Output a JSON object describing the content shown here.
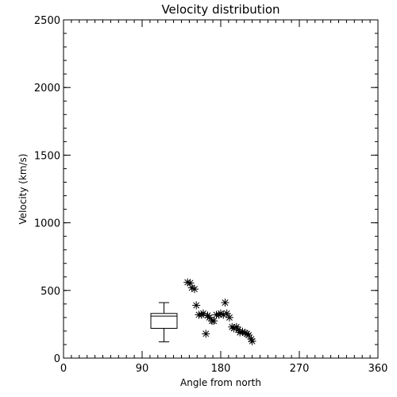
{
  "chart_data": {
    "type": "scatter",
    "title": "Velocity distribution",
    "xlabel": "Angle from north",
    "ylabel": "Velocity (km/s)",
    "xlim": [
      0,
      360
    ],
    "ylim": [
      0,
      2500
    ],
    "xticks": [
      "0",
      "90",
      "180",
      "270",
      "360"
    ],
    "yticks": [
      "0",
      "500",
      "1000",
      "1500",
      "2000",
      "2500"
    ],
    "marker": "asterisk",
    "grid": false,
    "points": [
      {
        "x": 142,
        "y": 560
      },
      {
        "x": 145,
        "y": 555
      },
      {
        "x": 147,
        "y": 520
      },
      {
        "x": 150,
        "y": 510
      },
      {
        "x": 152,
        "y": 390
      },
      {
        "x": 155,
        "y": 320
      },
      {
        "x": 158,
        "y": 320
      },
      {
        "x": 160,
        "y": 330
      },
      {
        "x": 163,
        "y": 180
      },
      {
        "x": 165,
        "y": 315
      },
      {
        "x": 167,
        "y": 300
      },
      {
        "x": 170,
        "y": 275
      },
      {
        "x": 172,
        "y": 275
      },
      {
        "x": 175,
        "y": 320
      },
      {
        "x": 178,
        "y": 320
      },
      {
        "x": 180,
        "y": 330
      },
      {
        "x": 183,
        "y": 320
      },
      {
        "x": 185,
        "y": 410
      },
      {
        "x": 187,
        "y": 330
      },
      {
        "x": 190,
        "y": 300
      },
      {
        "x": 193,
        "y": 230
      },
      {
        "x": 195,
        "y": 220
      },
      {
        "x": 198,
        "y": 230
      },
      {
        "x": 200,
        "y": 210
      },
      {
        "x": 202,
        "y": 190
      },
      {
        "x": 205,
        "y": 195
      },
      {
        "x": 208,
        "y": 185
      },
      {
        "x": 210,
        "y": 180
      },
      {
        "x": 212,
        "y": 170
      },
      {
        "x": 215,
        "y": 140
      },
      {
        "x": 216,
        "y": 125
      }
    ],
    "boxplot": {
      "x_center": 115,
      "x_halfwidth": 15,
      "min": 120,
      "q1": 220,
      "median": 310,
      "q3": 330,
      "max": 410
    }
  }
}
